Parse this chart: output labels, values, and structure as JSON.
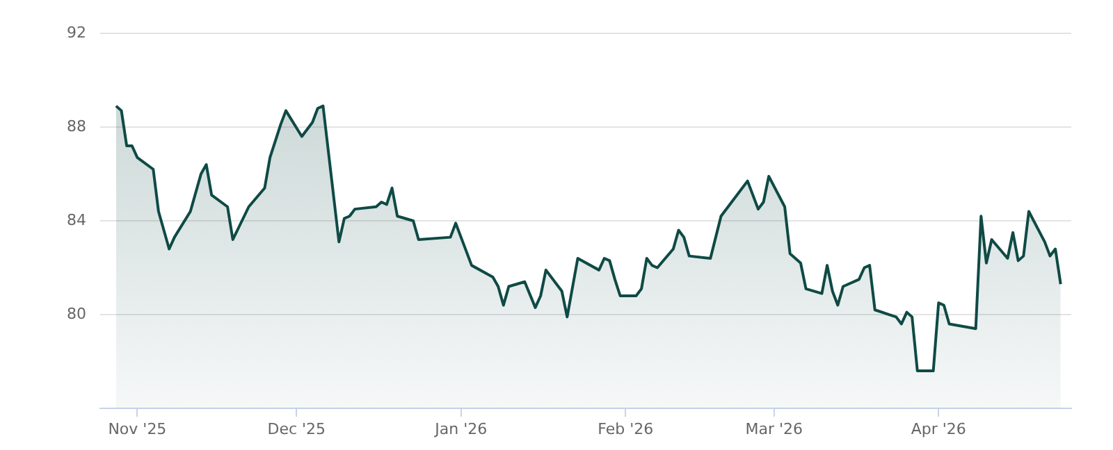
{
  "chart_data": {
    "type": "area",
    "x": [
      "2025-10-28",
      "2025-10-29",
      "2025-10-30",
      "2025-10-31",
      "2025-11-01",
      "2025-11-04",
      "2025-11-05",
      "2025-11-07",
      "2025-11-08",
      "2025-11-11",
      "2025-11-13",
      "2025-11-14",
      "2025-11-15",
      "2025-11-18",
      "2025-11-19",
      "2025-11-22",
      "2025-11-25",
      "2025-11-26",
      "2025-11-28",
      "2025-11-29",
      "2025-12-02",
      "2025-12-04",
      "2025-12-05",
      "2025-12-06",
      "2025-12-09",
      "2025-12-10",
      "2025-12-11",
      "2025-12-12",
      "2025-12-16",
      "2025-12-17",
      "2025-12-18",
      "2025-12-19",
      "2025-12-20",
      "2025-12-23",
      "2025-12-24",
      "2025-12-30",
      "2025-12-31",
      "2026-01-03",
      "2026-01-07",
      "2026-01-08",
      "2026-01-09",
      "2026-01-10",
      "2026-01-13",
      "2026-01-15",
      "2026-01-16",
      "2026-01-17",
      "2026-01-20",
      "2026-01-21",
      "2026-01-23",
      "2026-01-27",
      "2026-01-28",
      "2026-01-29",
      "2026-01-30",
      "2026-01-31",
      "2026-02-03",
      "2026-02-04",
      "2026-02-05",
      "2026-02-06",
      "2026-02-07",
      "2026-02-10",
      "2026-02-11",
      "2026-02-12",
      "2026-02-13",
      "2026-02-17",
      "2026-02-19",
      "2026-02-21",
      "2026-02-24",
      "2026-02-26",
      "2026-02-27",
      "2026-02-28",
      "2026-03-03",
      "2026-03-04",
      "2026-03-06",
      "2026-03-07",
      "2026-03-10",
      "2026-03-11",
      "2026-03-12",
      "2026-03-13",
      "2026-03-14",
      "2026-03-17",
      "2026-03-18",
      "2026-03-19",
      "2026-03-20",
      "2026-03-24",
      "2026-03-25",
      "2026-03-26",
      "2026-03-27",
      "2026-03-28",
      "2026-03-31",
      "2026-04-01",
      "2026-04-02",
      "2026-04-03",
      "2026-04-08",
      "2026-04-09",
      "2026-04-10",
      "2026-04-11",
      "2026-04-14",
      "2026-04-15",
      "2026-04-16",
      "2026-04-17",
      "2026-04-18",
      "2026-04-21",
      "2026-04-22",
      "2026-04-23",
      "2026-04-24"
    ],
    "series": [
      {
        "color": "#0f4a45",
        "values": [
          88.9,
          88.7,
          87.2,
          87.2,
          86.7,
          86.2,
          84.4,
          82.8,
          83.3,
          84.4,
          86.0,
          86.4,
          85.1,
          84.6,
          83.2,
          84.6,
          85.4,
          86.7,
          88.1,
          88.7,
          87.6,
          88.2,
          88.8,
          88.9,
          83.1,
          84.1,
          84.2,
          84.5,
          84.6,
          84.8,
          84.7,
          85.4,
          84.2,
          84.0,
          83.2,
          83.3,
          83.9,
          82.1,
          81.6,
          81.2,
          80.4,
          81.2,
          81.4,
          80.3,
          80.8,
          81.9,
          81.0,
          79.9,
          82.4,
          81.9,
          82.4,
          82.3,
          81.5,
          80.8,
          80.8,
          81.1,
          82.4,
          82.1,
          82.0,
          82.8,
          83.6,
          83.3,
          82.5,
          82.4,
          84.2,
          84.8,
          85.7,
          84.5,
          84.8,
          85.9,
          84.6,
          82.6,
          82.2,
          81.1,
          80.9,
          82.1,
          81.0,
          80.4,
          81.2,
          81.5,
          82.0,
          82.1,
          80.2,
          79.9,
          79.6,
          80.1,
          79.9,
          77.6,
          77.6,
          80.5,
          80.4,
          79.6,
          79.4,
          84.2,
          82.2,
          83.2,
          82.4,
          83.5,
          82.3,
          82.5,
          84.4,
          83.1,
          82.5,
          82.8,
          81.3
        ]
      }
    ],
    "xlim": [
      "2025-10-25",
      "2026-04-26"
    ],
    "xticks": [
      {
        "value": "2025-11-01",
        "label": "Nov '25"
      },
      {
        "value": "2025-12-01",
        "label": "Dec '25"
      },
      {
        "value": "2026-01-01",
        "label": "Jan '26"
      },
      {
        "value": "2026-02-01",
        "label": "Feb '26"
      },
      {
        "value": "2026-03-01",
        "label": "Mar '26"
      },
      {
        "value": "2026-04-01",
        "label": "Apr '26"
      }
    ],
    "ylim": [
      76,
      92
    ],
    "yticks": [
      80,
      84,
      88,
      92
    ],
    "grid": "y",
    "legend": false,
    "marker": "none",
    "line_style": "solid"
  }
}
